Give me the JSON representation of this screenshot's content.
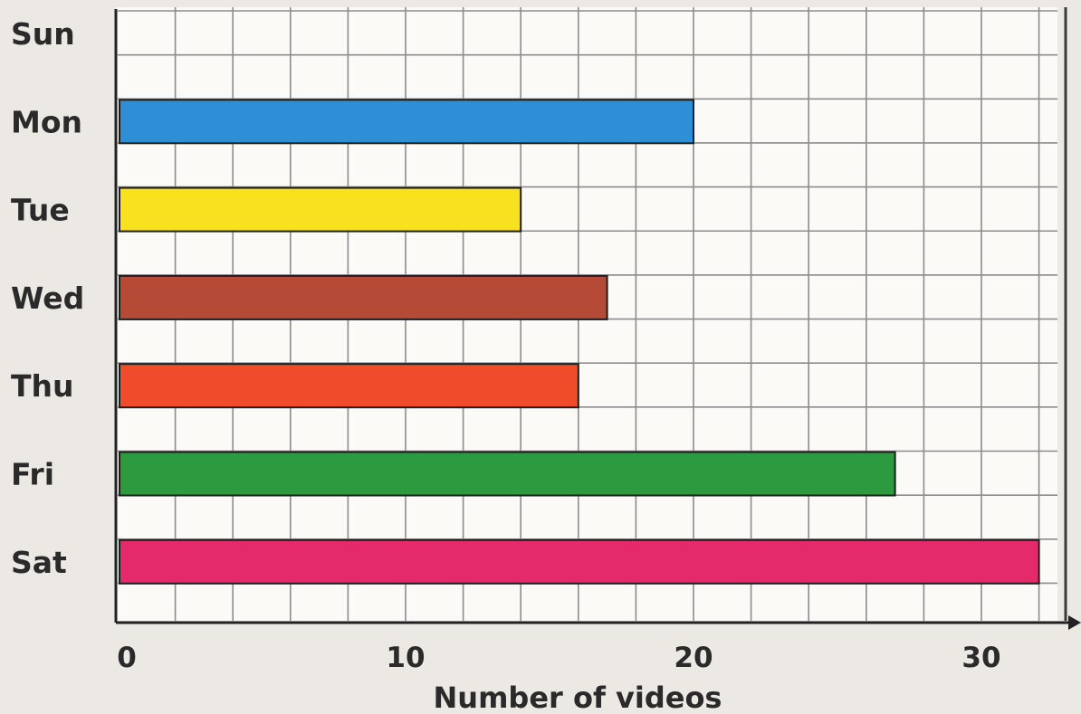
{
  "chart_data": {
    "type": "bar",
    "orientation": "horizontal",
    "categories": [
      "Sun",
      "Mon",
      "Tue",
      "Wed",
      "Thu",
      "Fri",
      "Sat"
    ],
    "values": [
      0,
      20,
      14,
      17,
      16,
      27,
      32
    ],
    "colors": [
      "#2f8fd6",
      "#2f8fd6",
      "#f8e11f",
      "#b54a36",
      "#f04c2b",
      "#2c9a3e",
      "#e42a6a"
    ],
    "title": "",
    "xlabel": "Number of videos",
    "ylabel": "",
    "xlim": [
      0,
      32.5
    ],
    "x_ticks": [
      0,
      10,
      20,
      30
    ],
    "grid": true,
    "grid_step": 2
  }
}
